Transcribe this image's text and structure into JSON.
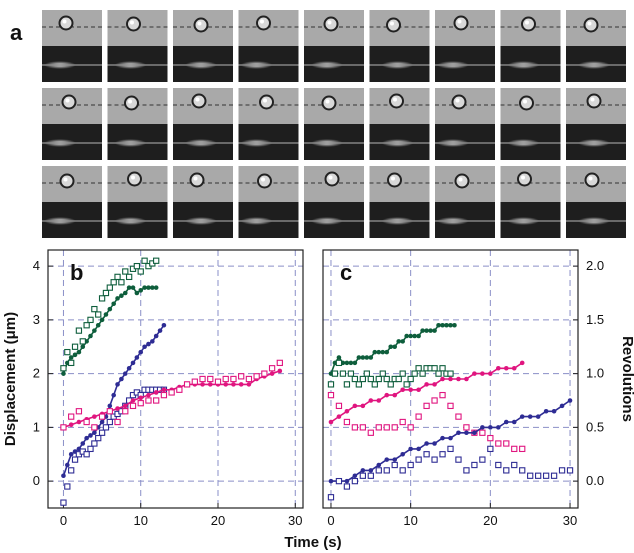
{
  "panel_labels": {
    "a": "a",
    "b": "b",
    "c": "c"
  },
  "colors": {
    "green": "#0e5e3c",
    "blue": "#2e2c94",
    "magenta": "#e0157f",
    "grid": "#8a8fc8",
    "frame_bg": "#a9a9a9",
    "strip_bg": "#1e1e1e"
  },
  "chart_data": [
    {
      "type": "scatter",
      "panel": "b",
      "xlabel": "Time (s)",
      "ylabel": "Displacement (μm)",
      "xlim": [
        -2,
        31
      ],
      "ylim": [
        -0.5,
        4.3
      ],
      "xticks": [
        "0",
        "10",
        "20",
        "30"
      ],
      "yticks": [
        "0",
        "1",
        "2",
        "3",
        "4"
      ],
      "grid": true,
      "series": [
        {
          "color": "green",
          "marker": "filled",
          "x": [
            0,
            0.5,
            1,
            1.5,
            2,
            2.5,
            3,
            3.5,
            4,
            4.5,
            5,
            5.5,
            6,
            6.5,
            7,
            7.5,
            8,
            8.5,
            9,
            9.5,
            10,
            10.5,
            11,
            11.5,
            12
          ],
          "y": [
            2.0,
            2.2,
            2.3,
            2.35,
            2.4,
            2.5,
            2.6,
            2.7,
            2.8,
            2.9,
            3.0,
            3.1,
            3.2,
            3.3,
            3.4,
            3.45,
            3.5,
            3.6,
            3.6,
            3.5,
            3.55,
            3.6,
            3.6,
            3.6,
            3.6
          ]
        },
        {
          "color": "green",
          "marker": "open",
          "x": [
            0,
            0.5,
            1,
            1.5,
            2,
            2.5,
            3,
            3.5,
            4,
            4.5,
            5,
            5.5,
            6,
            6.5,
            7,
            7.5,
            8,
            8.5,
            9,
            9.5,
            10,
            10.5,
            11,
            11.5,
            12
          ],
          "y": [
            2.1,
            2.4,
            2.2,
            2.5,
            2.8,
            2.6,
            2.9,
            3.0,
            3.2,
            3.1,
            3.4,
            3.5,
            3.6,
            3.7,
            3.8,
            3.7,
            3.9,
            3.8,
            3.95,
            4.0,
            3.9,
            4.1,
            4.0,
            4.05,
            4.1
          ]
        },
        {
          "color": "blue",
          "marker": "filled",
          "x": [
            0,
            0.5,
            1,
            1.5,
            2,
            2.5,
            3,
            3.5,
            4,
            4.5,
            5,
            5.5,
            6,
            6.5,
            7,
            7.5,
            8,
            8.5,
            9,
            9.5,
            10,
            10.5,
            11,
            11.5,
            12,
            12.5,
            13
          ],
          "y": [
            0.1,
            0.3,
            0.5,
            0.55,
            0.6,
            0.7,
            0.8,
            0.85,
            0.9,
            1.0,
            1.1,
            1.2,
            1.4,
            1.6,
            1.8,
            1.9,
            2.0,
            2.1,
            2.2,
            2.3,
            2.4,
            2.5,
            2.55,
            2.6,
            2.7,
            2.8,
            2.9
          ]
        },
        {
          "color": "blue",
          "marker": "open",
          "x": [
            0,
            0.5,
            1,
            1.5,
            2,
            2.5,
            3,
            3.5,
            4,
            4.5,
            5,
            5.5,
            6,
            6.5,
            7,
            7.5,
            8,
            8.5,
            9,
            9.5,
            10,
            10.5,
            11,
            11.5,
            12,
            12.5,
            13
          ],
          "y": [
            -0.4,
            -0.1,
            0.2,
            0.4,
            0.5,
            0.55,
            0.5,
            0.6,
            0.7,
            0.8,
            0.9,
            1.0,
            1.1,
            1.2,
            1.25,
            1.3,
            1.4,
            1.5,
            1.6,
            1.65,
            1.6,
            1.7,
            1.7,
            1.7,
            1.7,
            1.7,
            1.7
          ]
        },
        {
          "color": "magenta",
          "marker": "filled",
          "x": [
            0,
            1,
            2,
            3,
            4,
            5,
            6,
            7,
            8,
            9,
            10,
            11,
            12,
            13,
            14,
            15,
            16,
            17,
            18,
            19,
            20,
            21,
            22,
            23,
            24,
            25,
            26,
            27,
            28
          ],
          "y": [
            1.0,
            1.05,
            1.1,
            1.15,
            1.2,
            1.25,
            1.3,
            1.35,
            1.4,
            1.5,
            1.55,
            1.6,
            1.65,
            1.7,
            1.7,
            1.75,
            1.8,
            1.8,
            1.8,
            1.8,
            1.8,
            1.8,
            1.8,
            1.8,
            1.8,
            1.9,
            1.95,
            2.0,
            2.05
          ]
        },
        {
          "color": "magenta",
          "marker": "open",
          "x": [
            0,
            1,
            2,
            3,
            4,
            5,
            6,
            7,
            8,
            9,
            10,
            11,
            12,
            13,
            14,
            15,
            16,
            17,
            18,
            19,
            20,
            21,
            22,
            23,
            24,
            25,
            26,
            27,
            28
          ],
          "y": [
            1.0,
            1.2,
            1.3,
            1.1,
            1.0,
            1.2,
            1.3,
            1.1,
            1.3,
            1.4,
            1.45,
            1.5,
            1.5,
            1.6,
            1.65,
            1.7,
            1.8,
            1.85,
            1.9,
            1.9,
            1.85,
            1.9,
            1.9,
            1.95,
            1.9,
            1.95,
            2.0,
            2.1,
            2.2
          ]
        }
      ]
    },
    {
      "type": "scatter",
      "panel": "c",
      "xlabel": "Time (s)",
      "ylabel": "Revolutions",
      "xlim": [
        -1,
        31
      ],
      "ylim": [
        -0.25,
        2.15
      ],
      "xticks": [
        "0",
        "10",
        "20",
        "30"
      ],
      "yticks": [
        "0.0",
        "0.5",
        "1.0",
        "1.5",
        "2.0"
      ],
      "grid": true,
      "series": [
        {
          "color": "green",
          "marker": "filled",
          "x": [
            0,
            0.5,
            1,
            1.5,
            2,
            2.5,
            3,
            3.5,
            4,
            4.5,
            5,
            5.5,
            6,
            6.5,
            7,
            7.5,
            8,
            8.5,
            9,
            9.5,
            10,
            10.5,
            11,
            11.5,
            12,
            12.5,
            13,
            13.5,
            14,
            14.5,
            15,
            15.5
          ],
          "y": [
            1.0,
            1.1,
            1.15,
            1.1,
            1.1,
            1.1,
            1.1,
            1.15,
            1.15,
            1.15,
            1.15,
            1.2,
            1.2,
            1.2,
            1.2,
            1.25,
            1.25,
            1.3,
            1.3,
            1.35,
            1.35,
            1.35,
            1.35,
            1.4,
            1.4,
            1.4,
            1.4,
            1.45,
            1.45,
            1.45,
            1.45,
            1.45
          ]
        },
        {
          "color": "green",
          "marker": "open",
          "x": [
            0,
            0.5,
            1,
            1.5,
            2,
            2.5,
            3,
            3.5,
            4,
            4.5,
            5,
            5.5,
            6,
            6.5,
            7,
            7.5,
            8,
            8.5,
            9,
            9.5,
            10,
            10.5,
            11,
            11.5,
            12,
            12.5,
            13,
            13.5,
            14,
            14.5,
            15
          ],
          "y": [
            0.9,
            1.0,
            1.1,
            1.0,
            0.9,
            1.0,
            0.95,
            0.9,
            0.95,
            1.0,
            0.95,
            0.9,
            0.95,
            1.0,
            0.95,
            0.9,
            0.95,
            0.95,
            1.0,
            0.9,
            0.95,
            1.0,
            1.05,
            1.0,
            1.05,
            1.05,
            1.05,
            1.0,
            1.05,
            1.0,
            1.0
          ]
        },
        {
          "color": "magenta",
          "marker": "filled",
          "x": [
            0,
            1,
            2,
            3,
            4,
            5,
            6,
            7,
            8,
            9,
            10,
            11,
            12,
            13,
            14,
            15,
            16,
            17,
            18,
            19,
            20,
            21,
            22,
            23,
            24
          ],
          "y": [
            0.55,
            0.6,
            0.65,
            0.7,
            0.7,
            0.75,
            0.75,
            0.8,
            0.8,
            0.85,
            0.85,
            0.85,
            0.9,
            0.9,
            0.95,
            0.95,
            0.95,
            0.95,
            1.0,
            1.0,
            1.0,
            1.05,
            1.05,
            1.05,
            1.1
          ]
        },
        {
          "color": "magenta",
          "marker": "open",
          "x": [
            0,
            1,
            2,
            3,
            4,
            5,
            6,
            7,
            8,
            9,
            10,
            11,
            12,
            13,
            14,
            15,
            16,
            17,
            18,
            19,
            20,
            21,
            22,
            23,
            24
          ],
          "y": [
            0.8,
            0.7,
            0.55,
            0.5,
            0.5,
            0.45,
            0.5,
            0.5,
            0.5,
            0.55,
            0.5,
            0.6,
            0.7,
            0.75,
            0.8,
            0.7,
            0.6,
            0.5,
            0.45,
            0.45,
            0.4,
            0.35,
            0.35,
            0.3,
            0.3
          ]
        },
        {
          "color": "blue",
          "marker": "filled",
          "x": [
            0,
            1,
            2,
            3,
            4,
            5,
            6,
            7,
            8,
            9,
            10,
            11,
            12,
            13,
            14,
            15,
            16,
            17,
            18,
            19,
            20,
            21,
            22,
            23,
            24,
            25,
            26,
            27,
            28,
            29,
            30
          ],
          "y": [
            0.0,
            0.0,
            0.0,
            0.05,
            0.1,
            0.1,
            0.15,
            0.2,
            0.2,
            0.25,
            0.3,
            0.3,
            0.35,
            0.35,
            0.4,
            0.4,
            0.45,
            0.45,
            0.45,
            0.5,
            0.5,
            0.5,
            0.55,
            0.55,
            0.6,
            0.6,
            0.6,
            0.65,
            0.65,
            0.7,
            0.75
          ]
        },
        {
          "color": "blue",
          "marker": "open",
          "x": [
            0,
            1,
            2,
            3,
            4,
            5,
            6,
            7,
            8,
            9,
            10,
            11,
            12,
            13,
            14,
            15,
            16,
            17,
            18,
            19,
            20,
            21,
            22,
            23,
            24,
            25,
            26,
            27,
            28,
            29,
            30
          ],
          "y": [
            -0.15,
            0.0,
            -0.05,
            0.0,
            0.05,
            0.05,
            0.1,
            0.1,
            0.15,
            0.1,
            0.15,
            0.2,
            0.25,
            0.2,
            0.25,
            0.3,
            0.2,
            0.1,
            0.15,
            0.2,
            0.3,
            0.15,
            0.1,
            0.15,
            0.1,
            0.05,
            0.05,
            0.05,
            0.05,
            0.1,
            0.1
          ]
        }
      ]
    }
  ]
}
